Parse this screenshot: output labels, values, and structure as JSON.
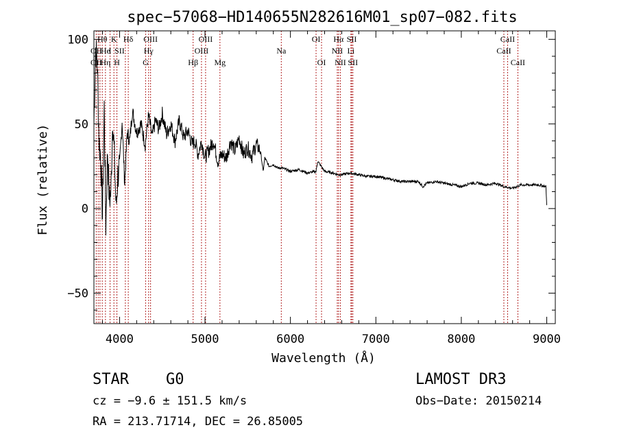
{
  "chart_data": {
    "type": "line",
    "title": "spec−57068−HD140655N282616M01_sp07−082.fits",
    "xlabel": "Wavelength (Å)",
    "ylabel": "Flux (relative)",
    "xlim": [
      3700,
      9100
    ],
    "ylim": [
      -68,
      105
    ],
    "xticks": [
      4000,
      5000,
      6000,
      7000,
      8000,
      9000
    ],
    "xtick_labels": [
      "4000",
      "5000",
      "6000",
      "7000",
      "8000",
      "9000"
    ],
    "yticks": [
      -50,
      0,
      50,
      100
    ],
    "ytick_labels": [
      "−50",
      "0",
      "50",
      "100"
    ],
    "grid": false,
    "series": [
      {
        "name": "spectrum",
        "x": [
          3700,
          3720,
          3740,
          3760,
          3780,
          3800,
          3820,
          3840,
          3860,
          3880,
          3900,
          3920,
          3940,
          3960,
          3980,
          4000,
          4030,
          4060,
          4090,
          4120,
          4150,
          4200,
          4250,
          4300,
          4340,
          4380,
          4420,
          4460,
          4500,
          4550,
          4600,
          4650,
          4700,
          4750,
          4800,
          4850,
          4880,
          4920,
          4960,
          5000,
          5050,
          5100,
          5150,
          5200,
          5250,
          5300,
          5350,
          5400,
          5450,
          5500,
          5550,
          5600,
          5650,
          5680,
          5700,
          5750,
          5800,
          5850,
          5900,
          6000,
          6100,
          6200,
          6300,
          6320,
          6400,
          6500,
          6560,
          6600,
          6700,
          6800,
          6900,
          7000,
          7100,
          7200,
          7300,
          7400,
          7500,
          7550,
          7600,
          7700,
          7800,
          7900,
          8000,
          8100,
          8200,
          8300,
          8400,
          8500,
          8600,
          8700,
          8800,
          8900,
          8990,
          9000
        ],
        "y": [
          50,
          95,
          85,
          40,
          30,
          -5,
          60,
          -10,
          35,
          5,
          10,
          55,
          30,
          0,
          20,
          25,
          52,
          15,
          45,
          40,
          58,
          45,
          50,
          38,
          55,
          42,
          52,
          47,
          56,
          44,
          50,
          40,
          52,
          42,
          46,
          38,
          40,
          32,
          40,
          30,
          35,
          40,
          28,
          32,
          30,
          40,
          34,
          42,
          32,
          36,
          31,
          38,
          34,
          22,
          30,
          25,
          26,
          24,
          24,
          22,
          23,
          21,
          22,
          28,
          22,
          21,
          20,
          20,
          21,
          20,
          19,
          19,
          18,
          17,
          16,
          16,
          16,
          13,
          15,
          16,
          15,
          14,
          13,
          15,
          15,
          14,
          15,
          13,
          12,
          14,
          14,
          14,
          13,
          2
        ]
      }
    ],
    "line_markers": [
      {
        "label": "OII",
        "x": 3727,
        "row": 2
      },
      {
        "label": "Hθ",
        "x": 3798,
        "row": 1
      },
      {
        "label": "OII",
        "x": 3727,
        "row": 3
      },
      {
        "label": "He",
        "x": 3835,
        "row": 2
      },
      {
        "label": "Hη",
        "x": 3835,
        "row": 3
      },
      {
        "label": "K",
        "x": 3934,
        "row": 1
      },
      {
        "label": "I",
        "x": 3889,
        "row": 2
      },
      {
        "label": "H",
        "x": 3969,
        "row": 3
      },
      {
        "label": "SII",
        "x": 4000,
        "row": 2
      },
      {
        "label": "Hδ",
        "x": 4102,
        "row": 1
      },
      {
        "label": "OIII",
        "x": 4363,
        "row": 1
      },
      {
        "label": "Hγ",
        "x": 4340,
        "row": 2
      },
      {
        "label": "G",
        "x": 4305,
        "row": 3
      },
      {
        "label": "Hβ",
        "x": 4861,
        "row": 3
      },
      {
        "label": "OIII",
        "x": 5007,
        "row": 1
      },
      {
        "label": "OIII",
        "x": 4959,
        "row": 2
      },
      {
        "label": "Mg",
        "x": 5175,
        "row": 3
      },
      {
        "label": "Na",
        "x": 5893,
        "row": 2
      },
      {
        "label": "OI",
        "x": 6300,
        "row": 1
      },
      {
        "label": "OI",
        "x": 6364,
        "row": 3
      },
      {
        "label": "Hα",
        "x": 6563,
        "row": 1
      },
      {
        "label": "NII",
        "x": 6548,
        "row": 2
      },
      {
        "label": "NII",
        "x": 6584,
        "row": 3
      },
      {
        "label": "SII",
        "x": 6717,
        "row": 1
      },
      {
        "label": "Li",
        "x": 6708,
        "row": 2
      },
      {
        "label": "SII",
        "x": 6731,
        "row": 3
      },
      {
        "label": "CaII",
        "x": 8542,
        "row": 1
      },
      {
        "label": "CaII",
        "x": 8498,
        "row": 2
      },
      {
        "label": "CaII",
        "x": 8662,
        "row": 3
      }
    ],
    "marker_lines": [
      3727,
      3750,
      3771,
      3798,
      3835,
      3889,
      3934,
      3969,
      4068,
      4102,
      4305,
      4340,
      4363,
      4861,
      4959,
      5007,
      5175,
      5893,
      6300,
      6364,
      6548,
      6563,
      6584,
      6708,
      6717,
      6731,
      8498,
      8542,
      8662
    ]
  },
  "info": {
    "object_class": "STAR",
    "subclass": "G0",
    "survey": "LAMOST DR3",
    "cz": "cz = −9.6 ± 151.5 km/s",
    "obs_date": "Obs−Date: 20150214",
    "coords": "RA = 213.71714, DEC =  26.85005"
  }
}
